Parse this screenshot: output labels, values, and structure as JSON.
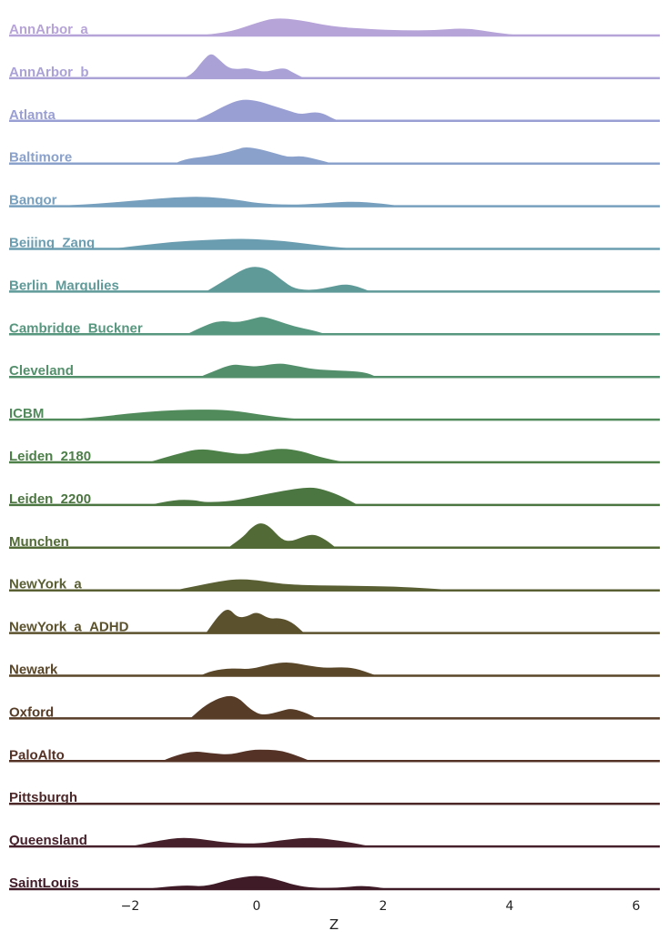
{
  "chart_data": {
    "type": "area",
    "subtype": "ridgeline-density",
    "xlabel": "Z",
    "ylabel": "",
    "xlim": [
      -3.8,
      6.4
    ],
    "xticks": [
      -2,
      0,
      2,
      4,
      6
    ],
    "xtick_labels": [
      "−2",
      "0",
      "2",
      "4",
      "6"
    ],
    "grid": false,
    "legend": "none",
    "series": [
      {
        "name": "AnnArbor_a",
        "color": "#b6a3d8",
        "x": [
          -0.9,
          -0.4,
          0,
          0.3,
          0.7,
          1.2,
          1.8,
          2.3,
          2.8,
          3.3,
          3.8,
          4.2
        ],
        "y": [
          0,
          0.15,
          0.5,
          0.7,
          0.6,
          0.35,
          0.25,
          0.2,
          0.2,
          0.3,
          0.1,
          0
        ]
      },
      {
        "name": "AnnArbor_b",
        "color": "#aaa2d7",
        "x": [
          -1.15,
          -1,
          -0.85,
          -0.72,
          -0.6,
          -0.45,
          -0.3,
          -0.15,
          0,
          0.15,
          0.3,
          0.45,
          0.55,
          0.75
        ],
        "y": [
          0,
          0.2,
          0.7,
          1,
          0.75,
          0.4,
          0.35,
          0.4,
          0.3,
          0.25,
          0.35,
          0.4,
          0.25,
          0
        ]
      },
      {
        "name": "Atlanta",
        "color": "#9a9fd3",
        "x": [
          -1,
          -0.8,
          -0.5,
          -0.25,
          0,
          0.25,
          0.5,
          0.7,
          0.9,
          1.05,
          1.2,
          1.3
        ],
        "y": [
          0,
          0.2,
          0.6,
          0.85,
          0.8,
          0.6,
          0.4,
          0.25,
          0.35,
          0.3,
          0.1,
          0
        ]
      },
      {
        "name": "Baltimore",
        "color": "#8aa1cb",
        "x": [
          -1.3,
          -1.1,
          -0.7,
          -0.3,
          -0.2,
          0,
          0.3,
          0.5,
          0.7,
          0.9,
          1.2
        ],
        "y": [
          0,
          0.2,
          0.3,
          0.55,
          0.65,
          0.6,
          0.4,
          0.25,
          0.3,
          0.2,
          0
        ]
      },
      {
        "name": "Bangor",
        "color": "#779fbe",
        "x": [
          -3.3,
          -2.5,
          -1.8,
          -1.3,
          -0.8,
          -0.3,
          0,
          0.5,
          1,
          1.5,
          2,
          2.3
        ],
        "y": [
          0,
          0.1,
          0.25,
          0.35,
          0.38,
          0.25,
          0.12,
          0.05,
          0.1,
          0.2,
          0.1,
          0
        ]
      },
      {
        "name": "Beijing_Zang",
        "color": "#6b9db0",
        "x": [
          -2.3,
          -1.8,
          -1.3,
          -0.8,
          -0.3,
          0,
          0.4,
          0.8,
          1.2,
          1.6
        ],
        "y": [
          0,
          0.15,
          0.28,
          0.35,
          0.4,
          0.38,
          0.32,
          0.2,
          0.08,
          0
        ]
      },
      {
        "name": "Berlin_Margulies",
        "color": "#5f9a99",
        "x": [
          -0.8,
          -0.5,
          -0.2,
          0,
          0.2,
          0.4,
          0.6,
          0.9,
          1.2,
          1.4,
          1.6,
          1.8
        ],
        "y": [
          0,
          0.45,
          0.9,
          1,
          0.85,
          0.45,
          0.1,
          0.05,
          0.2,
          0.3,
          0.2,
          0
        ]
      },
      {
        "name": "Cambridge_Buckner",
        "color": "#58977f",
        "x": [
          -1.1,
          -0.9,
          -0.6,
          -0.3,
          0,
          0.1,
          0.3,
          0.6,
          0.9,
          1.1
        ],
        "y": [
          0,
          0.25,
          0.55,
          0.45,
          0.65,
          0.7,
          0.55,
          0.3,
          0.15,
          0
        ]
      },
      {
        "name": "Cleveland",
        "color": "#548f6c",
        "x": [
          -0.9,
          -0.7,
          -0.4,
          -0.2,
          0,
          0.35,
          0.6,
          0.9,
          1.3,
          1.7,
          1.9
        ],
        "y": [
          0,
          0.2,
          0.5,
          0.45,
          0.4,
          0.55,
          0.45,
          0.3,
          0.25,
          0.2,
          0
        ]
      },
      {
        "name": "ICBM",
        "color": "#518a5b",
        "x": [
          -3,
          -2.5,
          -2,
          -1.5,
          -1,
          -0.5,
          -0.2,
          0.3,
          0.8
        ],
        "y": [
          0,
          0.1,
          0.25,
          0.35,
          0.4,
          0.38,
          0.3,
          0.1,
          0
        ]
      },
      {
        "name": "Leiden_2180",
        "color": "#4d8049",
        "x": [
          -1.7,
          -1.3,
          -0.9,
          -0.5,
          -0.2,
          0.1,
          0.4,
          0.7,
          1,
          1.4
        ],
        "y": [
          0,
          0.3,
          0.55,
          0.4,
          0.3,
          0.45,
          0.55,
          0.45,
          0.2,
          0
        ]
      },
      {
        "name": "Leiden_2200",
        "color": "#4c7641",
        "x": [
          -1.7,
          -1.3,
          -1,
          -0.8,
          -0.4,
          0,
          0.4,
          0.8,
          1,
          1.3,
          1.6
        ],
        "y": [
          0,
          0.2,
          0.2,
          0.1,
          0.15,
          0.35,
          0.55,
          0.7,
          0.65,
          0.4,
          0
        ]
      },
      {
        "name": "Munchen",
        "color": "#526b36",
        "x": [
          -0.45,
          -0.2,
          -0.1,
          0.05,
          0.2,
          0.4,
          0.55,
          0.7,
          0.9,
          1.1,
          1.25
        ],
        "y": [
          0,
          0.45,
          0.75,
          1,
          0.85,
          0.3,
          0.25,
          0.4,
          0.55,
          0.3,
          0
        ]
      },
      {
        "name": "NewYork_a",
        "color": "#5a5e33",
        "x": [
          -1.3,
          -0.9,
          -0.6,
          -0.3,
          0,
          0.4,
          0.8,
          1.5,
          2.2,
          2.7,
          3.2
        ],
        "y": [
          0,
          0.2,
          0.35,
          0.45,
          0.4,
          0.25,
          0.2,
          0.18,
          0.15,
          0.08,
          0
        ]
      },
      {
        "name": "NewYork_a_ADHD",
        "color": "#5b522d",
        "x": [
          -0.8,
          -0.6,
          -0.45,
          -0.3,
          -0.15,
          0,
          0.2,
          0.35,
          0.55,
          0.75
        ],
        "y": [
          0,
          0.7,
          1,
          0.6,
          0.65,
          0.85,
          0.55,
          0.6,
          0.45,
          0
        ]
      },
      {
        "name": "Newark",
        "color": "#5a4729",
        "x": [
          -0.9,
          -0.7,
          -0.4,
          -0.1,
          0.2,
          0.5,
          0.8,
          1.1,
          1.5,
          1.9
        ],
        "y": [
          0,
          0.2,
          0.3,
          0.25,
          0.45,
          0.55,
          0.4,
          0.3,
          0.35,
          0
        ]
      },
      {
        "name": "Oxford",
        "color": "#573c27",
        "x": [
          -1.05,
          -0.8,
          -0.5,
          -0.3,
          -0.1,
          0.1,
          0.4,
          0.55,
          0.8,
          0.95
        ],
        "y": [
          0,
          0.55,
          0.9,
          0.85,
          0.35,
          0.1,
          0.3,
          0.4,
          0.2,
          0
        ]
      },
      {
        "name": "PaloAlto",
        "color": "#543226",
        "x": [
          -1.5,
          -1.3,
          -1,
          -0.7,
          -0.4,
          -0.1,
          0.2,
          0.4,
          0.6,
          0.85
        ],
        "y": [
          0,
          0.2,
          0.4,
          0.3,
          0.25,
          0.45,
          0.45,
          0.4,
          0.25,
          0
        ]
      },
      {
        "name": "Pittsburgh",
        "color": "#4d2829",
        "x": [
          -3,
          0,
          3
        ],
        "y": [
          0,
          0,
          0
        ]
      },
      {
        "name": "Queensland",
        "color": "#46202b",
        "x": [
          -2,
          -1.5,
          -1.2,
          -0.9,
          -0.5,
          0,
          0.4,
          0.8,
          1.1,
          1.5,
          1.8
        ],
        "y": [
          0,
          0.25,
          0.35,
          0.3,
          0.15,
          0.1,
          0.25,
          0.35,
          0.3,
          0.15,
          0
        ]
      },
      {
        "name": "SaintLouis",
        "color": "#3f1a27",
        "x": [
          -1.8,
          -1.4,
          -1.1,
          -0.8,
          -0.4,
          0,
          0.3,
          0.6,
          0.9,
          1.3,
          1.7,
          2.1
        ],
        "y": [
          0,
          0.1,
          0.15,
          0.1,
          0.4,
          0.55,
          0.4,
          0.15,
          0.05,
          0.05,
          0.15,
          0
        ]
      }
    ]
  }
}
